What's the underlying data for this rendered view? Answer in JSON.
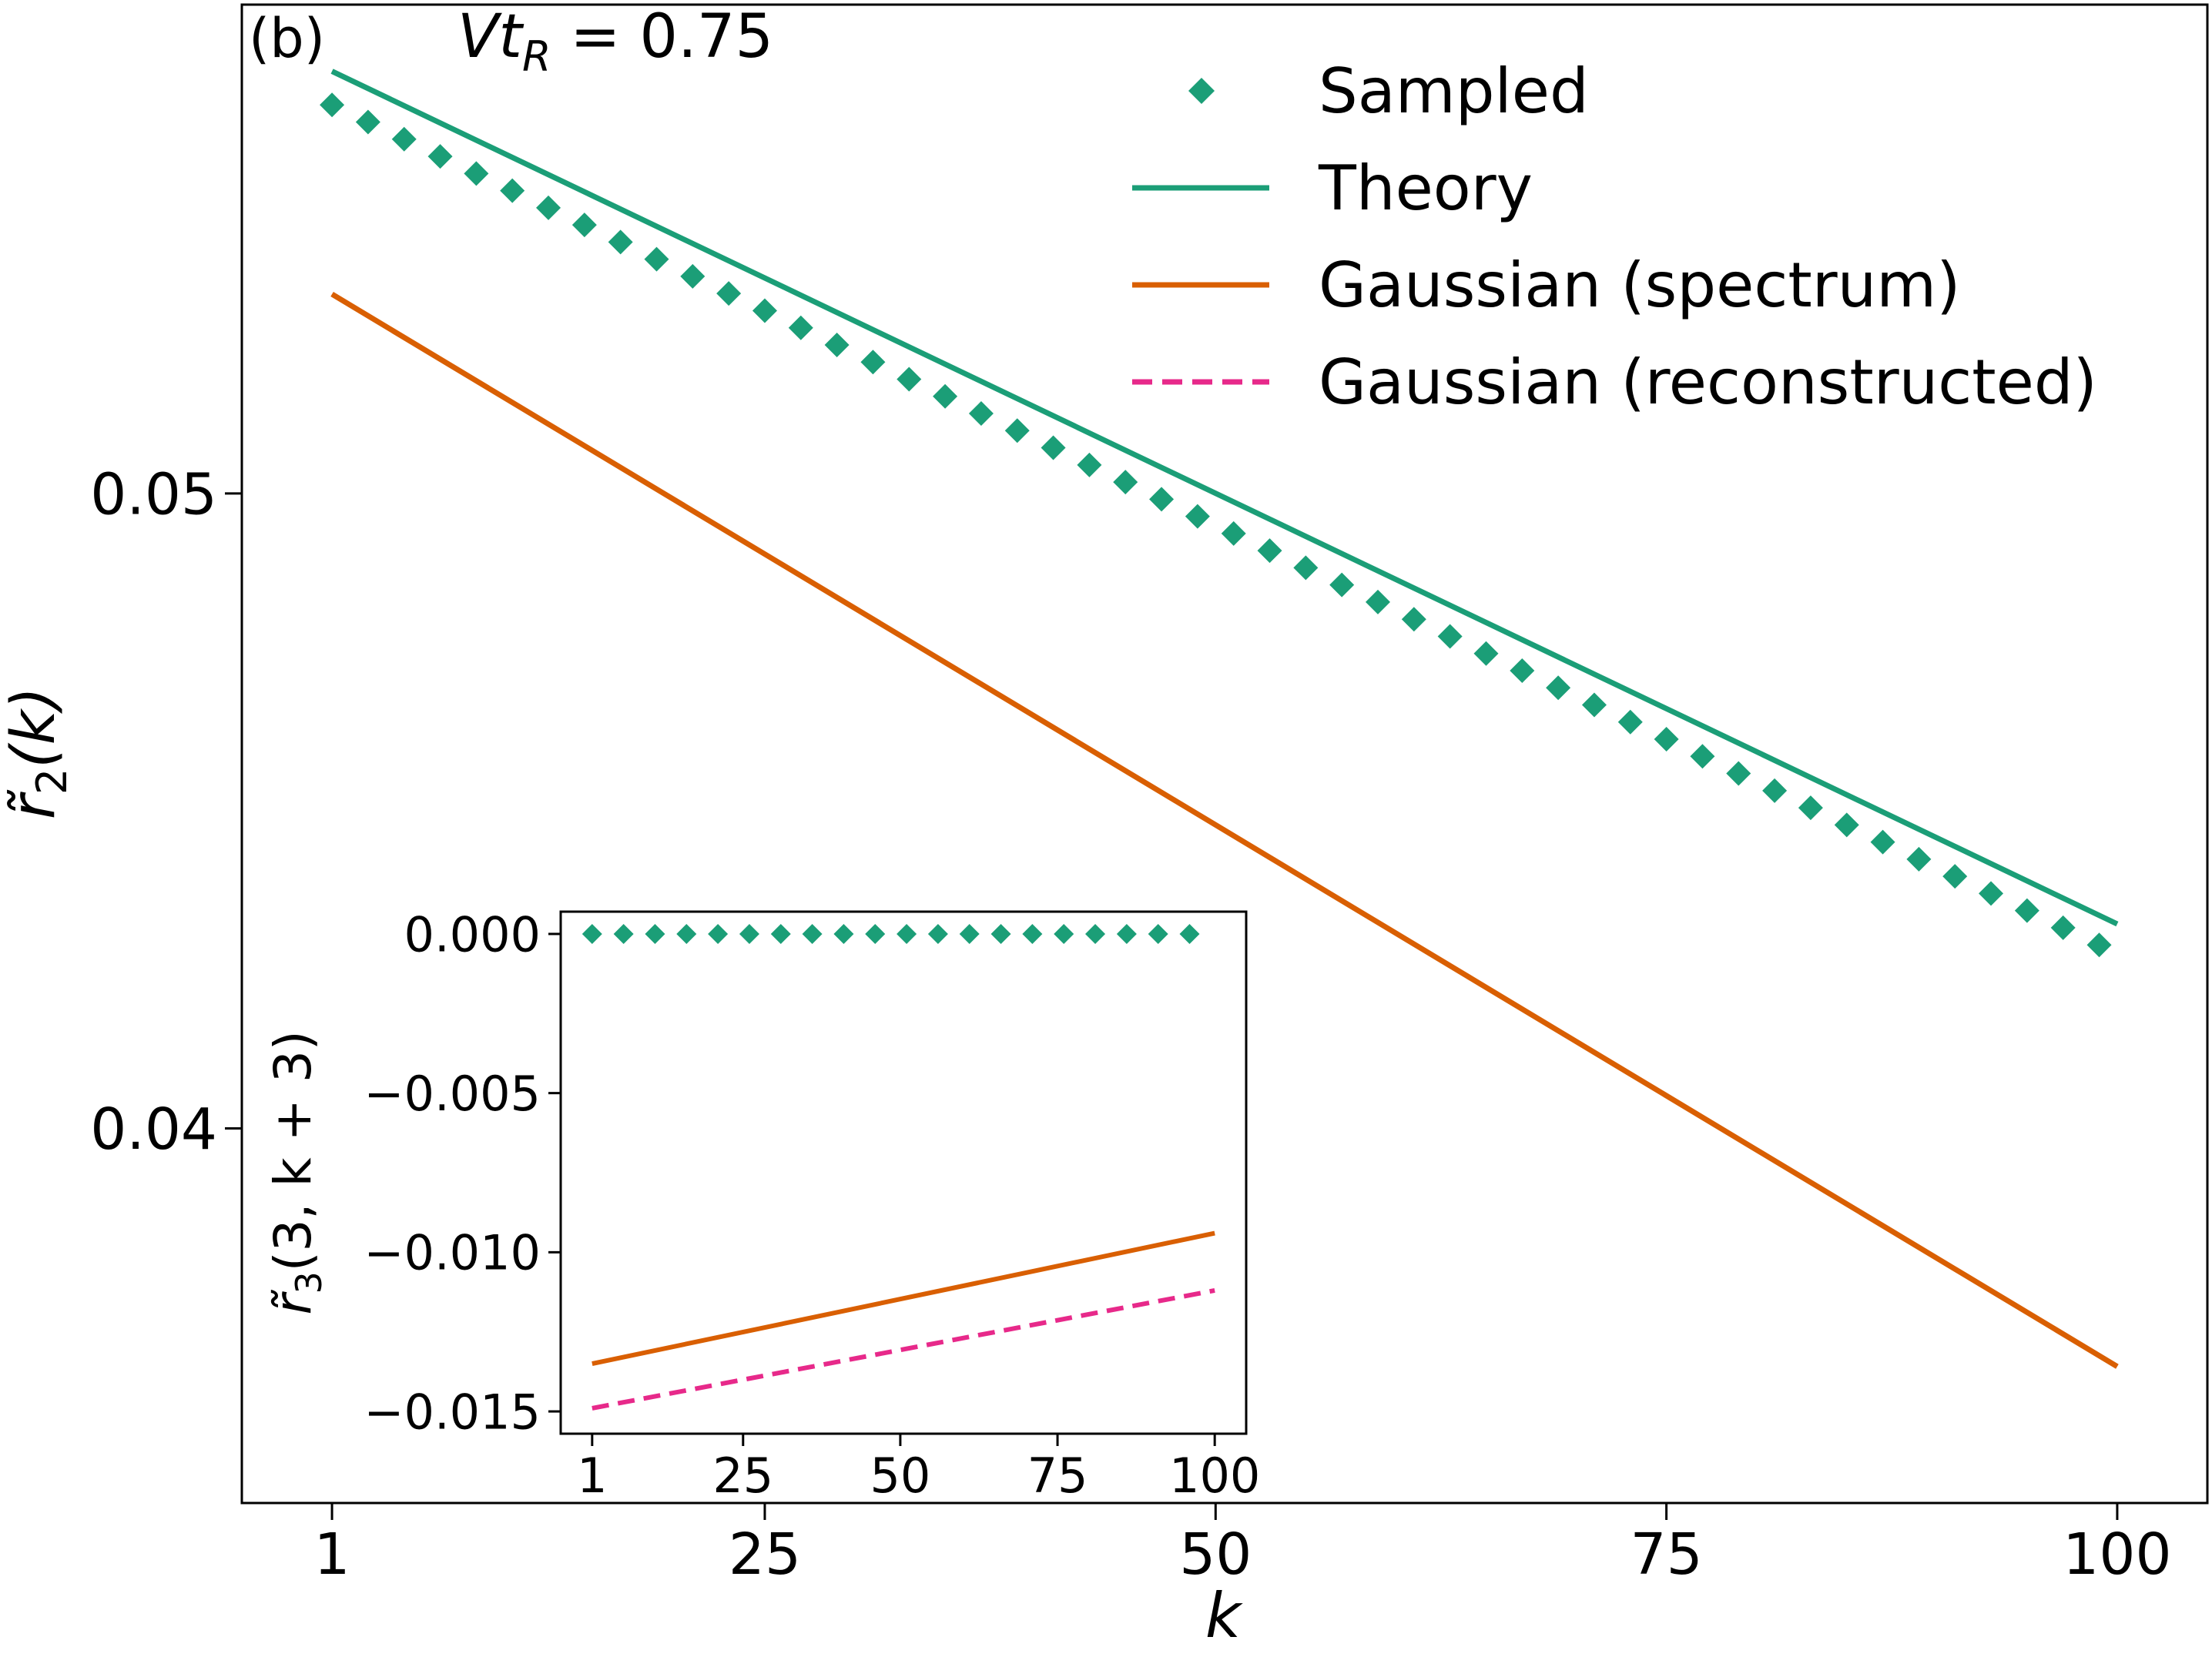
{
  "chart_data": [
    {
      "type": "line",
      "panel_label": "(b)",
      "annotation": "Vt_R = 0.75",
      "annotation_parts": {
        "main": "Vt",
        "sub": "R",
        "rest": " = 0.75"
      },
      "xlabel": "k",
      "ylabel": {
        "main": "r̃",
        "sub": "2",
        "rest": "(k)"
      },
      "xlim": [
        -4,
        105
      ],
      "ylim": [
        0.0341,
        0.0577
      ],
      "xticks": [
        {
          "value": 1,
          "label": "1"
        },
        {
          "value": 25,
          "label": "25"
        },
        {
          "value": 50,
          "label": "50"
        },
        {
          "value": 75,
          "label": "75"
        },
        {
          "value": 100,
          "label": "100"
        }
      ],
      "yticks": [
        {
          "value": 0.04,
          "label": "0.04"
        },
        {
          "value": 0.05,
          "label": "0.05"
        }
      ],
      "legend_position": "top-right",
      "legend": [
        {
          "label": "Sampled",
          "style": "diamond",
          "color": "#1b9e77"
        },
        {
          "label": "Theory",
          "style": "solid",
          "color": "#1b9e77"
        },
        {
          "label": "Gaussian (spectrum)",
          "style": "solid",
          "color": "#d95f02"
        },
        {
          "label": "Gaussian (reconstructed)",
          "style": "dashed",
          "color": "#e7298a"
        }
      ],
      "series": [
        {
          "name": "Sampled",
          "style": "diamond",
          "color": "#1b9e77",
          "x": [
            1,
            3,
            5,
            7,
            9,
            11,
            13,
            15,
            17,
            19,
            21,
            23,
            25,
            27,
            29,
            31,
            33,
            35,
            37,
            39,
            41,
            43,
            45,
            47,
            49,
            51,
            53,
            55,
            57,
            59,
            61,
            63,
            65,
            67,
            69,
            71,
            73,
            75,
            77,
            79,
            81,
            83,
            85,
            87,
            89,
            91,
            93,
            95,
            97,
            99
          ],
          "y": [
            0.05612,
            0.05585,
            0.05558,
            0.05531,
            0.05504,
            0.05477,
            0.0545,
            0.05423,
            0.05396,
            0.05369,
            0.05342,
            0.05315,
            0.05288,
            0.05261,
            0.05234,
            0.05207,
            0.0518,
            0.05153,
            0.05126,
            0.05099,
            0.05072,
            0.05045,
            0.05018,
            0.04991,
            0.04964,
            0.04937,
            0.0491,
            0.04883,
            0.04856,
            0.04829,
            0.04802,
            0.04775,
            0.04748,
            0.04721,
            0.04694,
            0.04667,
            0.0464,
            0.04613,
            0.04586,
            0.04559,
            0.04532,
            0.04505,
            0.04478,
            0.04451,
            0.04424,
            0.04397,
            0.0437,
            0.04343,
            0.04316,
            0.04289
          ]
        },
        {
          "name": "Theory",
          "style": "solid",
          "color": "#1b9e77",
          "x": [
            1,
            100
          ],
          "y": [
            0.05665,
            0.04322
          ]
        },
        {
          "name": "Gaussian (spectrum)",
          "style": "solid",
          "color": "#d95f02",
          "x": [
            1,
            100
          ],
          "y": [
            0.05314,
            0.03625
          ]
        }
      ]
    },
    {
      "type": "line",
      "inset": true,
      "xlabel": "",
      "ylabel": {
        "main": "r̃",
        "sub": "3",
        "rest": "(3, k + 3)"
      },
      "xlim": [
        -4,
        105
      ],
      "ylim": [
        -0.0157,
        0.0007
      ],
      "xticks": [
        {
          "value": 1,
          "label": "1"
        },
        {
          "value": 25,
          "label": "25"
        },
        {
          "value": 50,
          "label": "50"
        },
        {
          "value": 75,
          "label": "75"
        },
        {
          "value": 100,
          "label": "100"
        }
      ],
      "yticks": [
        {
          "value": 0.0,
          "label": "0.000"
        },
        {
          "value": -0.005,
          "label": "−0.005"
        },
        {
          "value": -0.01,
          "label": "−0.010"
        },
        {
          "value": -0.015,
          "label": "−0.015"
        }
      ],
      "series": [
        {
          "name": "Sampled",
          "style": "diamond",
          "color": "#1b9e77",
          "x": [
            1,
            6,
            11,
            16,
            21,
            26,
            31,
            36,
            41,
            46,
            51,
            56,
            61,
            66,
            71,
            76,
            81,
            86,
            91,
            96
          ],
          "y": [
            0,
            0,
            0,
            0,
            0,
            0,
            0,
            0,
            0,
            0,
            0,
            0,
            0,
            0,
            0,
            0,
            0,
            0,
            0,
            0
          ]
        },
        {
          "name": "Gaussian (spectrum)",
          "style": "solid",
          "color": "#d95f02",
          "x": [
            1,
            100
          ],
          "y": [
            -0.0135,
            -0.0094
          ]
        },
        {
          "name": "Gaussian (reconstructed)",
          "style": "dashed",
          "color": "#e7298a",
          "x": [
            1,
            100
          ],
          "y": [
            -0.0149,
            -0.0112
          ]
        }
      ]
    }
  ]
}
